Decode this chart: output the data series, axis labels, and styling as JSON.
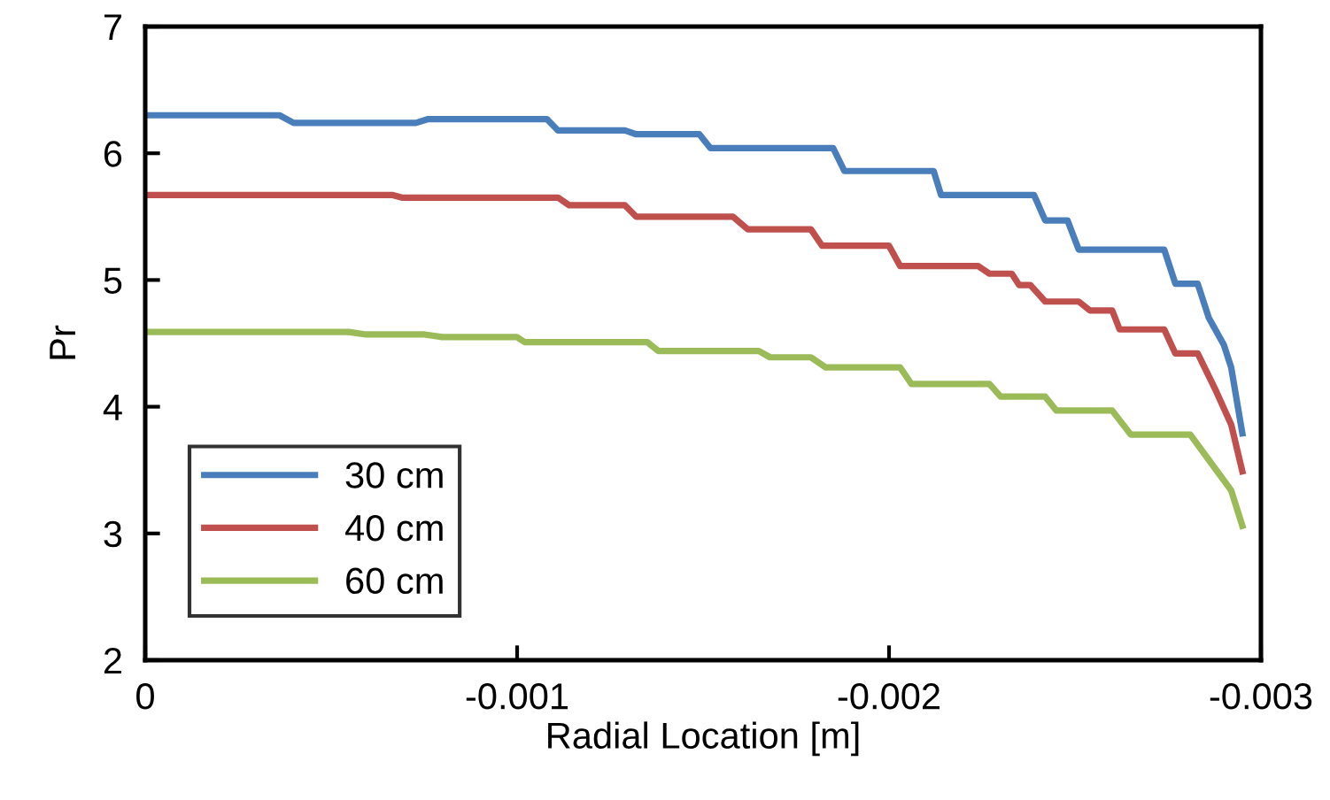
{
  "chart_data": {
    "type": "line",
    "xlabel": "Radial Location [m]",
    "ylabel": "Pr",
    "xlim": [
      0,
      -0.003
    ],
    "xticks": [
      0,
      -0.001,
      -0.002,
      -0.003
    ],
    "ylim": [
      2,
      7
    ],
    "yticks": [
      2,
      3,
      4,
      5,
      6,
      7
    ],
    "grid": false,
    "legend": "bottom left",
    "marker": "none",
    "line_style": "solid",
    "series": [
      {
        "name": "30 cm",
        "color": "#4a7ebb",
        "x": [
          0,
          -0.000361,
          -0.000399,
          -0.000728,
          -0.000761,
          -0.00108,
          -0.00111,
          -0.00129,
          -0.00132,
          -0.00149,
          -0.00152,
          -0.00185,
          -0.00188,
          -0.00212,
          -0.00214,
          -0.00239,
          -0.00242,
          -0.00248,
          -0.00251,
          -0.00274,
          -0.00277,
          -0.00283,
          -0.00286,
          -0.0029,
          -0.00292,
          -0.00295
        ],
        "values": [
          6.3,
          6.3,
          6.24,
          6.24,
          6.27,
          6.27,
          6.18,
          6.18,
          6.15,
          6.15,
          6.04,
          6.04,
          5.86,
          5.86,
          5.67,
          5.67,
          5.47,
          5.47,
          5.24,
          5.24,
          4.97,
          4.97,
          4.7,
          4.49,
          4.31,
          3.79
        ]
      },
      {
        "name": "40 cm",
        "color": "#c0504d",
        "x": [
          0,
          -0.000666,
          -0.00069,
          -0.00111,
          -0.00114,
          -0.00129,
          -0.00132,
          -0.00158,
          -0.00162,
          -0.00179,
          -0.00182,
          -0.002,
          -0.00203,
          -0.00224,
          -0.00227,
          -0.00233,
          -0.00235,
          -0.00238,
          -0.00242,
          -0.00251,
          -0.00254,
          -0.0026,
          -0.00262,
          -0.00274,
          -0.00277,
          -0.00283,
          -0.00288,
          -0.00292,
          -0.00295
        ],
        "values": [
          5.67,
          5.67,
          5.65,
          5.65,
          5.59,
          5.59,
          5.5,
          5.5,
          5.4,
          5.4,
          5.27,
          5.27,
          5.11,
          5.11,
          5.05,
          5.05,
          4.96,
          4.96,
          4.83,
          4.83,
          4.76,
          4.76,
          4.61,
          4.61,
          4.42,
          4.42,
          4.12,
          3.86,
          3.49
        ]
      },
      {
        "name": "60 cm",
        "color": "#9bbb59",
        "x": [
          0,
          -0.000547,
          -0.000594,
          -0.000751,
          -0.000799,
          -0.000999,
          -0.00102,
          -0.00135,
          -0.00138,
          -0.00165,
          -0.00168,
          -0.00179,
          -0.00183,
          -0.00203,
          -0.00206,
          -0.00227,
          -0.0023,
          -0.00242,
          -0.00245,
          -0.0026,
          -0.00265,
          -0.00281,
          -0.00286,
          -0.00292,
          -0.00295
        ],
        "values": [
          4.59,
          4.59,
          4.57,
          4.57,
          4.55,
          4.55,
          4.51,
          4.51,
          4.44,
          4.44,
          4.39,
          4.39,
          4.31,
          4.31,
          4.18,
          4.18,
          4.08,
          4.08,
          3.97,
          3.97,
          3.78,
          3.78,
          3.58,
          3.34,
          3.06
        ]
      }
    ]
  }
}
